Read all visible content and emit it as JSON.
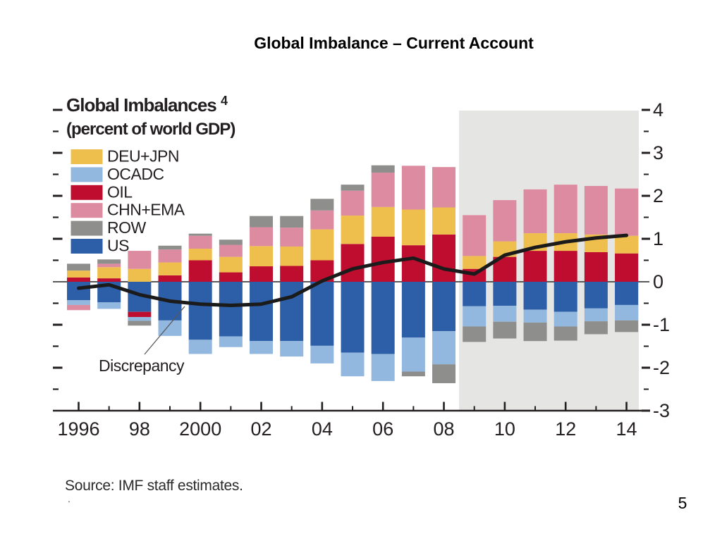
{
  "page": {
    "title": "Global Imbalance – Current Account",
    "source": "Source: IMF staff estimates.",
    "footnote_mark": ".",
    "page_number": "5"
  },
  "chart": {
    "title": "Global Imbalances",
    "title_superscript": "4",
    "subtitle": "(percent of world GDP)",
    "annotation_label": "Discrepancy"
  },
  "chart_data": {
    "type": "bar",
    "stacked": true,
    "title": "Global Imbalances (percent of world GDP)",
    "xlabel": "",
    "ylabel": "percent of world GDP",
    "x": [
      1996,
      1997,
      1998,
      1999,
      2000,
      2001,
      2002,
      2003,
      2004,
      2005,
      2006,
      2007,
      2008,
      2009,
      2010,
      2011,
      2012,
      2013,
      2014
    ],
    "x_tick_labels": {
      "1996": "1996",
      "1998": "98",
      "2000": "2000",
      "2002": "02",
      "2004": "04",
      "2006": "06",
      "2008": "08",
      "2010": "10",
      "2012": "12",
      "2014": "14"
    },
    "ylim": [
      -3,
      4
    ],
    "y_major_ticks": [
      -3,
      -2,
      -1,
      0,
      1,
      2,
      3,
      4
    ],
    "y_minor_step": 0.5,
    "grid": false,
    "legend_position": "top-left",
    "projection_region": {
      "start_x": 2008.5,
      "end_x": 2014.5,
      "color": "#E5E5E4"
    },
    "stack_order_positive": [
      "OIL",
      "DEU+JPN",
      "CHN+EMA",
      "ROW"
    ],
    "stack_order_negative": [
      "US",
      "OIL",
      "OCADC",
      "ROW",
      "CHN+EMA"
    ],
    "series": [
      {
        "name": "DEU+JPN",
        "color": "#EFBF4D",
        "values": [
          0.16,
          0.26,
          0.3,
          0.3,
          0.27,
          0.36,
          0.47,
          0.45,
          0.72,
          0.66,
          0.69,
          0.83,
          0.63,
          0.3,
          0.36,
          0.41,
          0.41,
          0.41,
          0.41
        ]
      },
      {
        "name": "OCADC",
        "color": "#93B8DF",
        "values": [
          -0.11,
          -0.15,
          -0.09,
          -0.36,
          -0.33,
          -0.25,
          -0.3,
          -0.36,
          -0.41,
          -0.55,
          -0.63,
          -0.79,
          -0.77,
          -0.47,
          -0.37,
          -0.3,
          -0.34,
          -0.3,
          -0.36
        ]
      },
      {
        "name": "OIL",
        "color": "#BE0D2F",
        "values": [
          0.1,
          0.08,
          -0.12,
          0.15,
          0.5,
          0.22,
          0.36,
          0.37,
          0.5,
          0.88,
          1.05,
          0.85,
          1.1,
          0.3,
          0.58,
          0.72,
          0.72,
          0.69,
          0.66
        ]
      },
      {
        "name": "CHN+EMA",
        "color": "#DD8BA0",
        "values": [
          -0.12,
          0.08,
          0.42,
          0.3,
          0.3,
          0.28,
          0.44,
          0.44,
          0.44,
          0.58,
          0.8,
          1.02,
          0.94,
          0.95,
          0.96,
          1.02,
          1.13,
          1.13,
          1.1
        ]
      },
      {
        "name": "ROW",
        "color": "#8E8E8C",
        "values": [
          0.16,
          0.1,
          -0.11,
          0.09,
          0.05,
          0.12,
          0.26,
          0.27,
          0.27,
          0.14,
          0.17,
          -0.11,
          -0.44,
          -0.36,
          -0.39,
          -0.43,
          -0.33,
          -0.3,
          -0.27
        ]
      },
      {
        "name": "US",
        "color": "#2D5FA9",
        "values": [
          -0.43,
          -0.48,
          -0.7,
          -0.9,
          -1.35,
          -1.27,
          -1.38,
          -1.38,
          -1.49,
          -1.65,
          -1.68,
          -1.3,
          -1.15,
          -0.57,
          -0.56,
          -0.65,
          -0.7,
          -0.62,
          -0.54
        ]
      }
    ],
    "line_series": {
      "name": "Discrepancy",
      "color": "#1B1B1B",
      "values": [
        -0.15,
        -0.07,
        -0.3,
        -0.45,
        -0.52,
        -0.55,
        -0.52,
        -0.35,
        0.02,
        0.3,
        0.45,
        0.55,
        0.3,
        0.18,
        0.62,
        0.8,
        0.93,
        1.02,
        1.08
      ]
    }
  }
}
